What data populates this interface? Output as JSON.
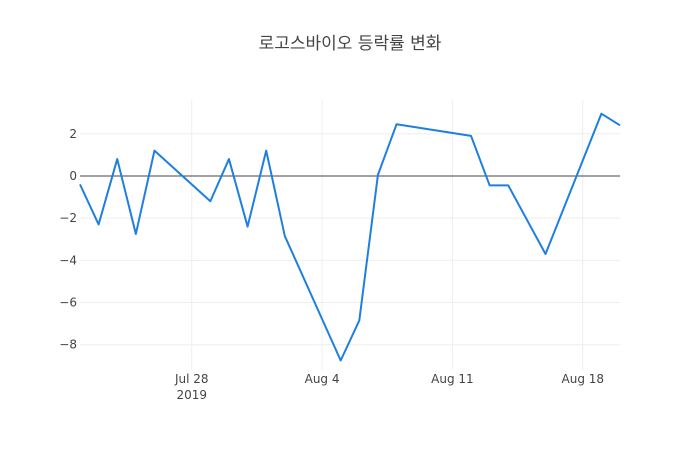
{
  "chart_data": {
    "type": "line",
    "title": "로고스바이오 등락률 변화",
    "xlabel": "",
    "ylabel": "",
    "x_range": [
      "2019-07-22",
      "2019-08-20"
    ],
    "ylim": [
      -9.2,
      3.6
    ],
    "grid": true,
    "zero_line": true,
    "line_color": "#1f7fe0",
    "x_ticks": [
      {
        "date": "2019-07-28",
        "label": "Jul 28",
        "sublabel": "2019"
      },
      {
        "date": "2019-08-04",
        "label": "Aug 4",
        "sublabel": ""
      },
      {
        "date": "2019-08-11",
        "label": "Aug 11",
        "sublabel": ""
      },
      {
        "date": "2019-08-18",
        "label": "Aug 18",
        "sublabel": ""
      }
    ],
    "y_ticks": [
      {
        "value": 2,
        "label": "2"
      },
      {
        "value": 0,
        "label": "0"
      },
      {
        "value": -2,
        "label": "−2"
      },
      {
        "value": -4,
        "label": "−4"
      },
      {
        "value": -6,
        "label": "−6"
      },
      {
        "value": -8,
        "label": "−8"
      }
    ],
    "series": [
      {
        "x": [
          "2019-07-22",
          "2019-07-23",
          "2019-07-24",
          "2019-07-25",
          "2019-07-26",
          "2019-07-29",
          "2019-07-30",
          "2019-07-31",
          "2019-08-01",
          "2019-08-02",
          "2019-08-05",
          "2019-08-06",
          "2019-08-07",
          "2019-08-08",
          "2019-08-12",
          "2019-08-13",
          "2019-08-14",
          "2019-08-16",
          "2019-08-19",
          "2019-08-20"
        ],
        "y": [
          -0.4,
          -2.3,
          0.8,
          -2.75,
          1.2,
          -1.2,
          0.8,
          -2.4,
          1.2,
          -2.85,
          -8.75,
          -6.85,
          0.05,
          2.45,
          1.9,
          -0.45,
          -0.45,
          -3.7,
          2.95,
          2.4
        ]
      }
    ]
  }
}
